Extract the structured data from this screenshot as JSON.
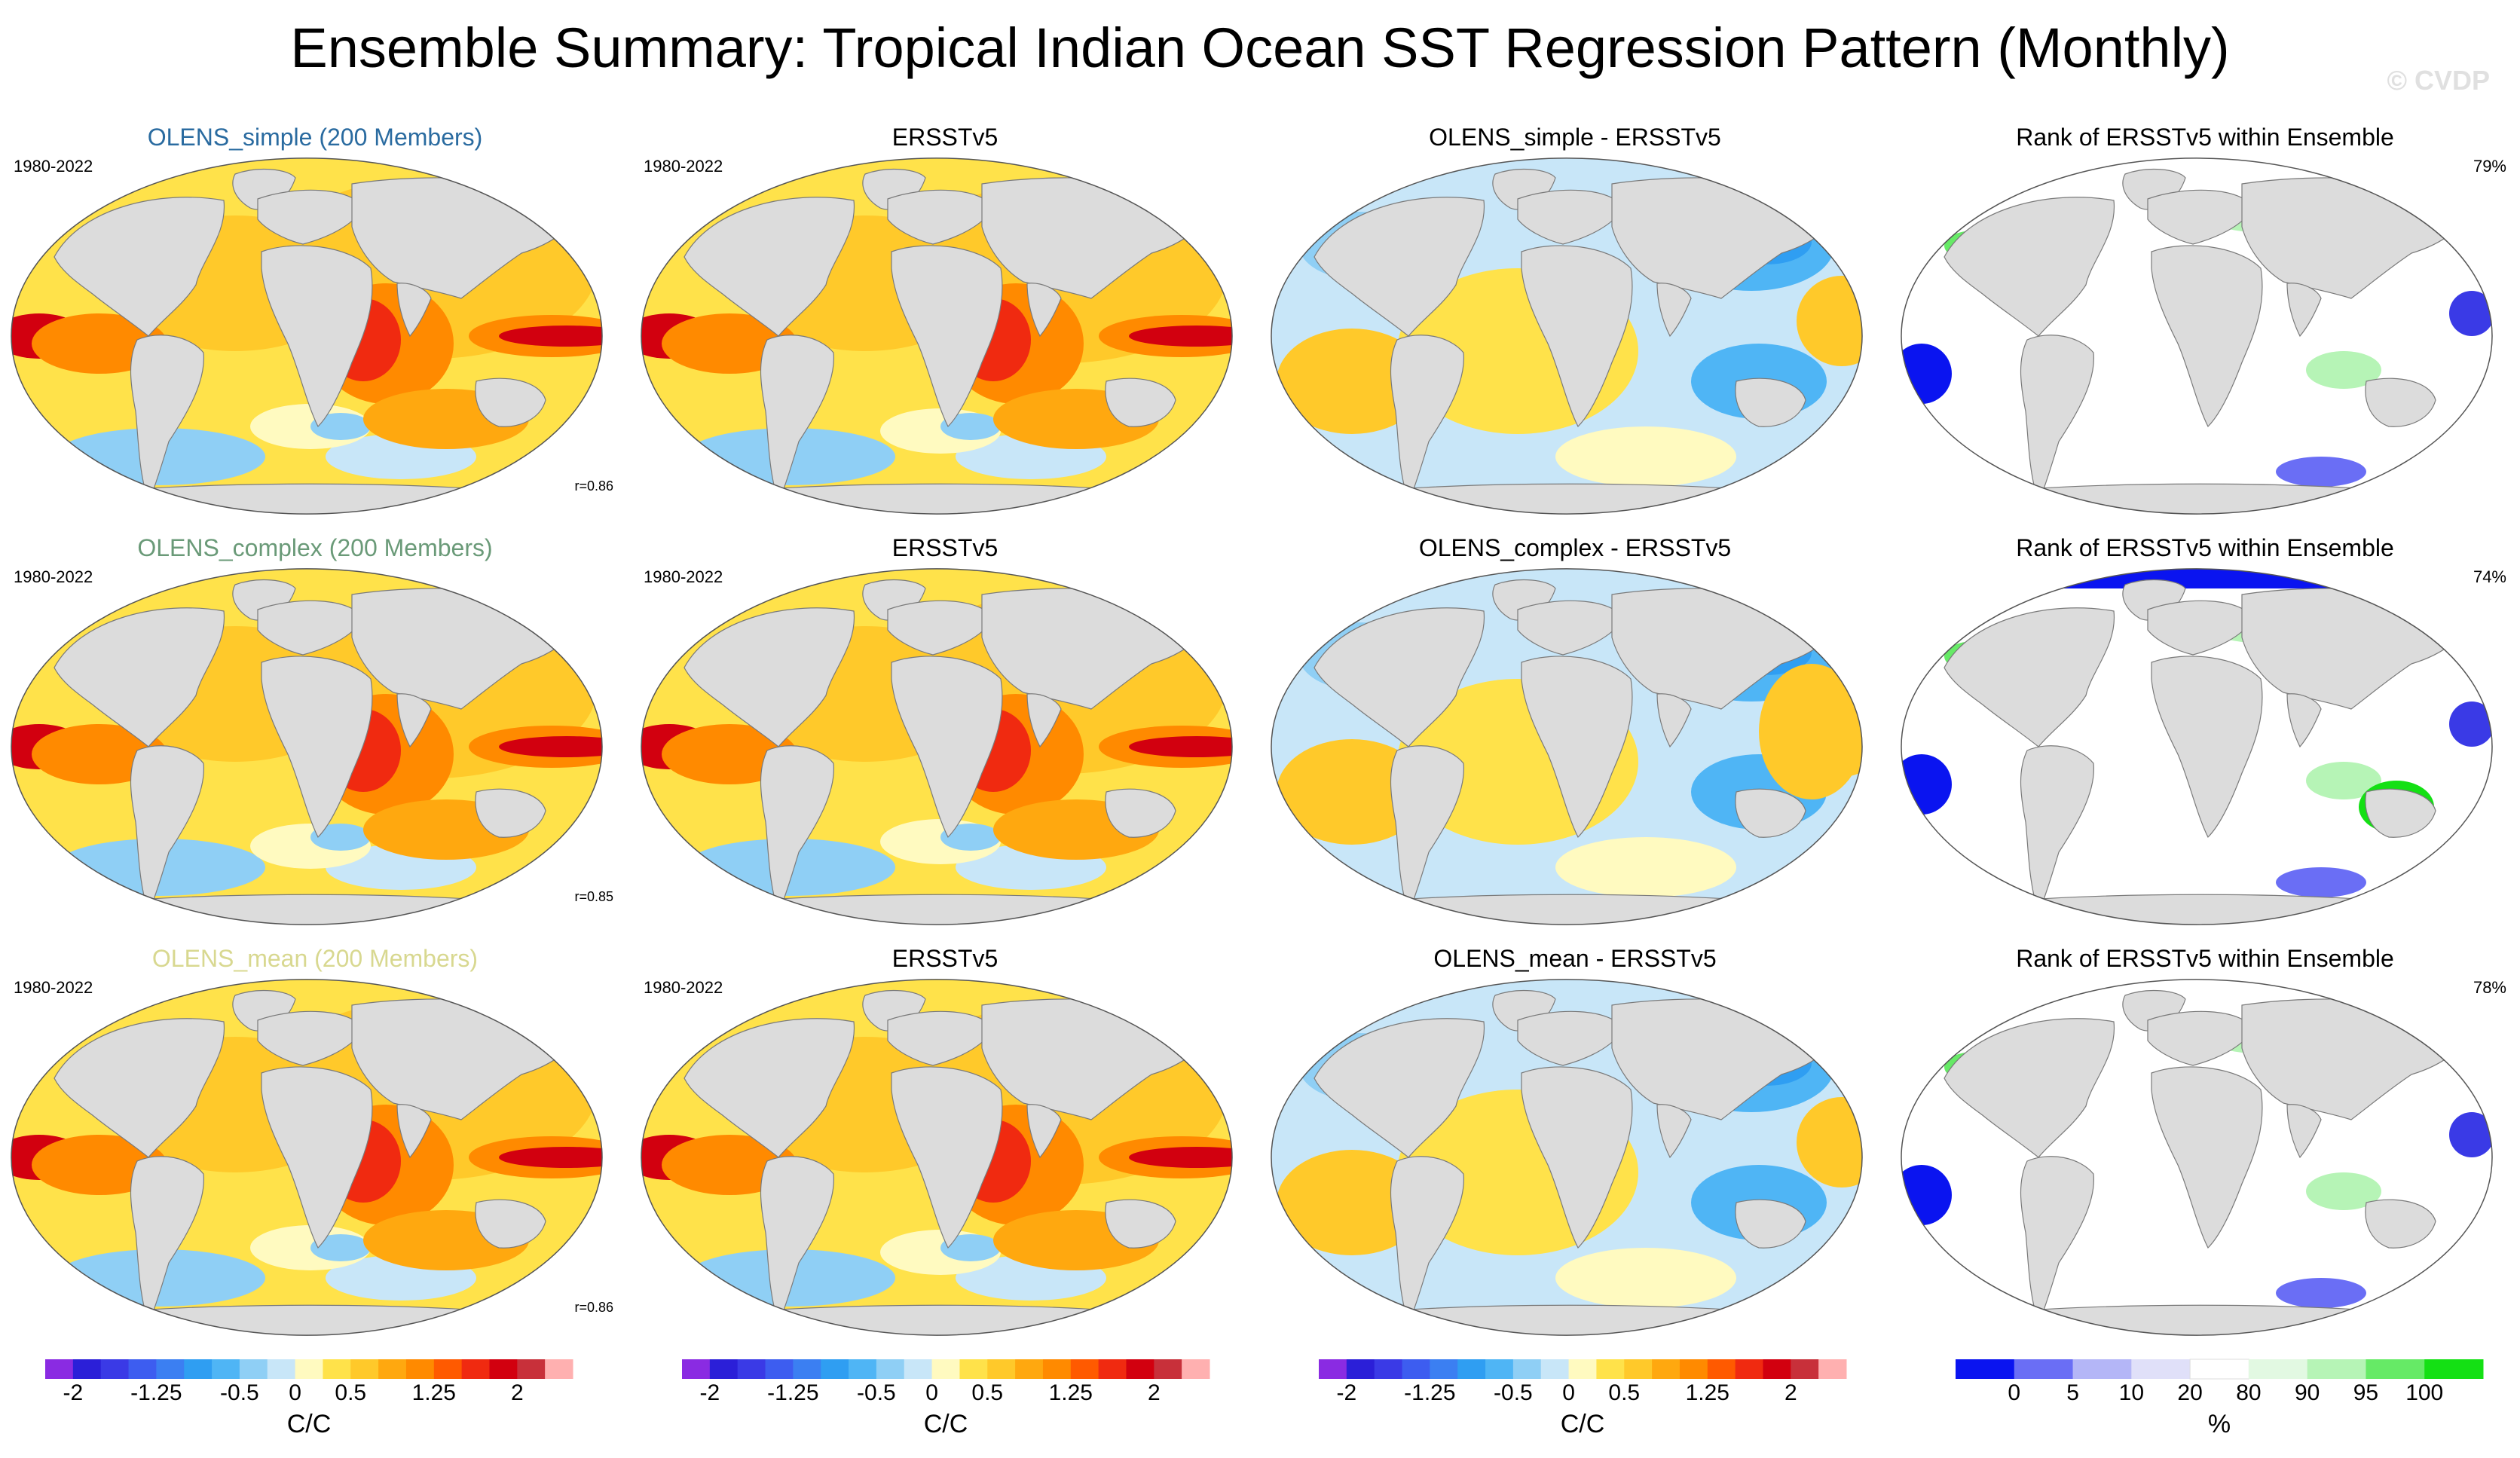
{
  "title": "Ensemble Summary: Tropical Indian Ocean SST Regression Pattern (Monthly)",
  "watermark": "© CVDP",
  "rows": [
    {
      "ensemble": {
        "title": "OLENS_simple (200 Members)",
        "title_color": "#2a6ba0",
        "years": "1980-2022",
        "corr": "r=0.86"
      },
      "obs": {
        "title": "ERSSTv5",
        "years": "1980-2022"
      },
      "diff": {
        "title": "OLENS_simple - ERSSTv5"
      },
      "rank": {
        "title": "Rank of ERSSTv5 within Ensemble",
        "pct": "79%"
      }
    },
    {
      "ensemble": {
        "title": "OLENS_complex (200 Members)",
        "title_color": "#6a9a78",
        "years": "1980-2022",
        "corr": "r=0.85"
      },
      "obs": {
        "title": "ERSSTv5",
        "years": "1980-2022"
      },
      "diff": {
        "title": "OLENS_complex - ERSSTv5"
      },
      "rank": {
        "title": "Rank of ERSSTv5 within Ensemble",
        "pct": "74%"
      }
    },
    {
      "ensemble": {
        "title": "OLENS_mean (200 Members)",
        "title_color": "#d8d890",
        "years": "1980-2022",
        "corr": "r=0.86"
      },
      "obs": {
        "title": "ERSSTv5",
        "years": "1980-2022"
      },
      "diff": {
        "title": "OLENS_mean - ERSSTv5"
      },
      "rank": {
        "title": "Rank of ERSSTv5 within Ensemble",
        "pct": "78%"
      }
    }
  ],
  "chart_data": [
    {
      "type": "heatmap",
      "title": "Ensemble Summary: Tropical Indian Ocean SST Regression Pattern (Monthly)",
      "panels": [
        "OLENS_simple (200 Members)",
        "ERSSTv5",
        "OLENS_simple - ERSSTv5",
        "Rank of ERSSTv5 within Ensemble",
        "OLENS_complex (200 Members)",
        "ERSSTv5",
        "OLENS_complex - ERSSTv5",
        "Rank of ERSSTv5 within Ensemble",
        "OLENS_mean (200 Members)",
        "ERSSTv5",
        "OLENS_mean - ERSSTv5",
        "Rank of ERSSTv5 within Ensemble"
      ],
      "pattern_correlations": {
        "OLENS_simple": 0.86,
        "OLENS_complex": 0.85,
        "OLENS_mean": 0.86
      },
      "rank_percent_in_20_80": {
        "OLENS_simple": 79,
        "OLENS_complex": 74,
        "OLENS_mean": 78
      }
    },
    {
      "type": "colorbar",
      "name": "regression",
      "unit": "C/C",
      "ticks": [
        {
          "label": "-2",
          "value": -2
        },
        {
          "label": "-1.25",
          "value": -1.25
        },
        {
          "label": "-0.5",
          "value": -0.5
        },
        {
          "label": "0",
          "value": 0
        },
        {
          "label": "0.5",
          "value": 0.5
        },
        {
          "label": "1.25",
          "value": 1.25
        },
        {
          "label": "2",
          "value": 2
        }
      ],
      "levels": [
        -2,
        -1.75,
        -1.5,
        -1.25,
        -1,
        -0.75,
        -0.5,
        -0.25,
        0,
        0.25,
        0.5,
        0.75,
        1,
        1.25,
        1.5,
        1.75,
        2
      ],
      "colors": [
        "#8a2be2",
        "#2b1fd8",
        "#3a3ae6",
        "#3d5df0",
        "#3b7ff2",
        "#2f9ef2",
        "#4fb5f5",
        "#8fcff5",
        "#c8e6f8",
        "#fffac0",
        "#ffe24a",
        "#ffc92a",
        "#ffa80f",
        "#ff8a00",
        "#ff5a00",
        "#f02a10",
        "#d2000f",
        "#c8303a",
        "#ffb0b0"
      ]
    },
    {
      "type": "colorbar",
      "name": "rank",
      "unit": "%",
      "ticks": [
        {
          "label": "0",
          "value": 0
        },
        {
          "label": "5",
          "value": 5
        },
        {
          "label": "10",
          "value": 10
        },
        {
          "label": "20",
          "value": 20
        },
        {
          "label": "80",
          "value": 80
        },
        {
          "label": "90",
          "value": 90
        },
        {
          "label": "95",
          "value": 95
        },
        {
          "label": "100",
          "value": 100
        }
      ],
      "colors": [
        "#0a14f0",
        "#6a6ef5",
        "#b4b6f7",
        "#e0e0f9",
        "#ffffff",
        "#e2f9e2",
        "#b6f4b6",
        "#66ea66",
        "#14e014"
      ]
    }
  ]
}
